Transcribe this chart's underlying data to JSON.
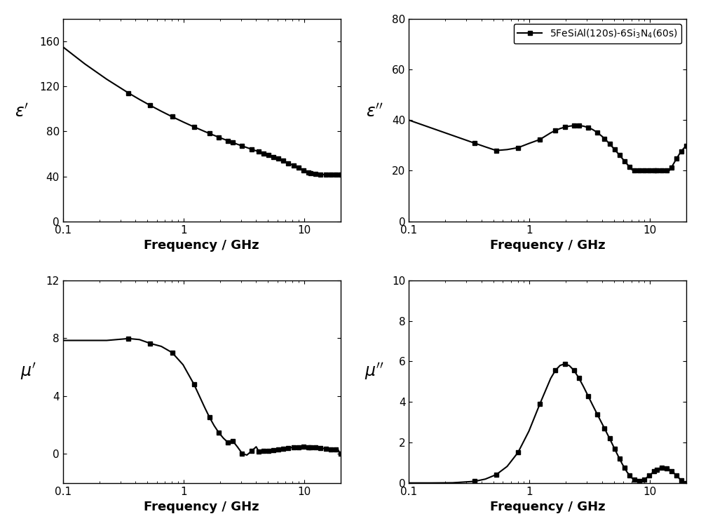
{
  "xlabel": "Frequency / GHz",
  "xmin": 0.1,
  "xmax": 20,
  "eps_prime_ylim": [
    0,
    180
  ],
  "eps_dprime_ylim": [
    0,
    80
  ],
  "mu_prime_ylim": [
    -2,
    12
  ],
  "mu_dprime_ylim": [
    0,
    10
  ],
  "eps_prime_yticks": [
    0,
    40,
    80,
    120,
    160
  ],
  "eps_dprime_yticks": [
    0,
    20,
    40,
    60,
    80
  ],
  "mu_prime_yticks": [
    0,
    4,
    8,
    12
  ],
  "mu_dprime_yticks": [
    0,
    2,
    4,
    6,
    8,
    10
  ],
  "line_color": "#000000",
  "marker": "s",
  "markersize": 4,
  "linewidth": 1.5,
  "background_color": "#ffffff",
  "label_fontsize": 13,
  "tick_fontsize": 11,
  "legend_fontsize": 10
}
